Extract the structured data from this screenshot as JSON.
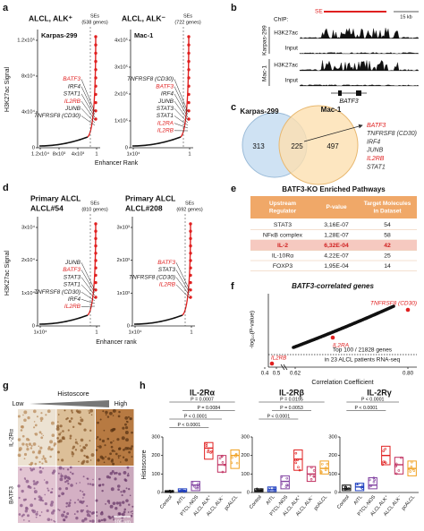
{
  "a": {
    "label": "a",
    "ylabel": "H3K27ac Signal",
    "xlabel": "Enhancer Rank",
    "plots": [
      {
        "title": "ALCL, ALK⁺",
        "sample": "Karpas-299",
        "se": [
          "SEs",
          "(538 genes)"
        ],
        "yticks": [
          "1.2x10⁵",
          "8x10⁴",
          "4x10⁴",
          "0"
        ],
        "xticks": [
          "1.2x10⁴",
          "8x10³",
          "4x10³",
          "1"
        ],
        "genes": [
          {
            "name": "BATF3",
            "color": "#e02020"
          },
          {
            "name": "IRF4",
            "color": "#222222"
          },
          {
            "name": "STAT1",
            "color": "#222222"
          },
          {
            "name": "IL2RB",
            "color": "#e02020"
          },
          {
            "name": "JUNB",
            "color": "#222222"
          },
          {
            "name": "TNFRSF8 (CD30)",
            "color": "#222222"
          }
        ]
      },
      {
        "title": "ALCL, ALK⁻",
        "sample": "Mac-1",
        "se": [
          "SEs",
          "(722 genes)"
        ],
        "yticks": [
          "4x10⁵",
          "3x10⁵",
          "2x10⁵",
          "1x10⁵",
          "0"
        ],
        "xticks": [
          "1x10⁴",
          "1"
        ],
        "genes": [
          {
            "name": "TNFRSF8 (CD30)",
            "color": "#222222"
          },
          {
            "name": "BATF3",
            "color": "#e02020"
          },
          {
            "name": "IRF4",
            "color": "#222222"
          },
          {
            "name": "JUNB",
            "color": "#222222"
          },
          {
            "name": "STAT3",
            "color": "#222222"
          },
          {
            "name": "STAT1",
            "color": "#222222"
          },
          {
            "name": "IL2RA",
            "color": "#e02020"
          },
          {
            "name": "IL2RB",
            "color": "#e02020"
          }
        ]
      }
    ]
  },
  "b": {
    "label": "b",
    "chip": "ChIP:",
    "samples": [
      "Karpas-299",
      "Mac-1"
    ],
    "tracks": [
      "H3K27ac",
      "Input",
      "H3K27ac",
      "Input"
    ],
    "se": "SE",
    "scale": "15 kb",
    "gene": "BATF3"
  },
  "c": {
    "label": "c",
    "sets": [
      "Karpas-299",
      "Mac-1"
    ],
    "counts": [
      313,
      225,
      497
    ],
    "genes": [
      {
        "name": "BATF3",
        "color": "#e02020"
      },
      {
        "name": "TNFRSF8 (CD30)",
        "color": "#333333"
      },
      {
        "name": "IRF4",
        "color": "#333333"
      },
      {
        "name": "JUNB",
        "color": "#333333"
      },
      {
        "name": "IL2RB",
        "color": "#e02020"
      },
      {
        "name": "STAT1",
        "color": "#333333"
      }
    ]
  },
  "d": {
    "label": "d",
    "ylabel": "H3K27ac Signal",
    "xlabel": "Enhancer rank",
    "plots": [
      {
        "title": "Primary ALCL",
        "sample": "ALCL#54",
        "se": [
          "SEs",
          "(810 genes)"
        ],
        "yticks": [
          "3x10⁴",
          "2x10⁴",
          "1x10⁴",
          "0"
        ],
        "xticks": [
          "1x10⁴",
          "1"
        ],
        "genes": [
          {
            "name": "JUNB",
            "color": "#222222"
          },
          {
            "name": "BATF3",
            "color": "#e02020"
          },
          {
            "name": "STAT3",
            "color": "#222222"
          },
          {
            "name": "STAT1",
            "color": "#222222"
          },
          {
            "name": "TNFRSF8 (CD30)",
            "color": "#222222"
          },
          {
            "name": "IRF4",
            "color": "#222222"
          },
          {
            "name": "IL2RB",
            "color": "#e02020"
          }
        ]
      },
      {
        "title": "Primary ALCL",
        "sample": "ALCL#208",
        "se": [
          "SEs",
          "(692 genes)"
        ],
        "yticks": [
          "3x10³",
          "2x10³",
          "1x10³",
          "0"
        ],
        "xticks": [
          "1x10⁴",
          "1"
        ],
        "genes": [
          {
            "name": "BATF3",
            "color": "#e02020"
          },
          {
            "name": "STAT3",
            "color": "#222222"
          },
          {
            "name": "TNFRSF8 (CD30)",
            "color": "#222222"
          },
          {
            "name": "IL2RB",
            "color": "#e02020"
          }
        ]
      }
    ]
  },
  "e": {
    "label": "e",
    "title": "BATF3-KO Enriched Pathways",
    "header": [
      [
        "Upstream",
        "Regulator"
      ],
      [
        "P-value"
      ],
      [
        "Target Molecules",
        "in Dataset"
      ]
    ],
    "rows": [
      [
        "STAT3",
        "3,16E-07",
        54
      ],
      [
        "NFκB complex",
        "1,28E-07",
        58
      ],
      [
        "IL-2",
        "6,32E-04",
        42
      ],
      [
        "IL-10Rα",
        "4,22E-07",
        25
      ],
      [
        "FOXP3",
        "1,95E-04",
        14
      ]
    ],
    "highlighted_row": 2
  },
  "f": {
    "label": "f",
    "title": "BATF3-correlated genes",
    "ylabel": "-log₁₀(P-value)",
    "xlabel": "Correlation Coefficient",
    "xticks": [
      "0.4",
      "0.5",
      "0.62",
      "0.80"
    ],
    "genes": [
      "TNFRSF8 (CD30)",
      "IL2RA",
      "IL2RB"
    ],
    "note": [
      "Top 100 / 21828 genes",
      "in 23 ALCL patients RNA-seq"
    ]
  },
  "g": {
    "label": "g",
    "scale_title": "Histoscore",
    "low": "Low",
    "high": "High",
    "rows": [
      "IL-2Rα",
      "BATF3"
    ],
    "scalebar": "100 µm"
  },
  "h": {
    "label": "h",
    "ylabel": "Histoscore",
    "categories": [
      "Control",
      "AITL",
      "PTCL-NOS",
      "ALCL ALK⁺",
      "ALCL ALK⁻",
      "pcALCL"
    ],
    "colors": [
      "#111111",
      "#2040c0",
      "#8040a0",
      "#e02020",
      "#c03060",
      "#f0a020"
    ],
    "ylim": [
      0,
      300
    ],
    "yticks": [
      0,
      100,
      200,
      300
    ],
    "panels": [
      {
        "title": "IL-2Rα",
        "q1": [
          0,
          5,
          10,
          180,
          110,
          130
        ],
        "median": [
          5,
          10,
          40,
          240,
          150,
          200
        ],
        "q3": [
          10,
          20,
          60,
          270,
          200,
          230
        ],
        "pvalues": [
          "P = 0.0007",
          "P = 0.0084",
          "P < 0.0001",
          "P < 0.0001"
        ]
      },
      {
        "title": "IL-2Rβ",
        "q1": [
          5,
          5,
          20,
          120,
          60,
          100
        ],
        "median": [
          10,
          15,
          60,
          180,
          100,
          130
        ],
        "q3": [
          20,
          30,
          90,
          230,
          140,
          170
        ],
        "pvalues": [
          "P = 0.0195",
          "P = 0.0053",
          "P < 0.0001"
        ]
      },
      {
        "title": "IL-2Rγ",
        "q1": [
          10,
          10,
          20,
          150,
          100,
          90
        ],
        "median": [
          20,
          30,
          40,
          200,
          150,
          130
        ],
        "q3": [
          40,
          50,
          80,
          250,
          190,
          170
        ],
        "pvalues": [
          "P < 0.0001",
          "P < 0.0001"
        ]
      }
    ]
  }
}
